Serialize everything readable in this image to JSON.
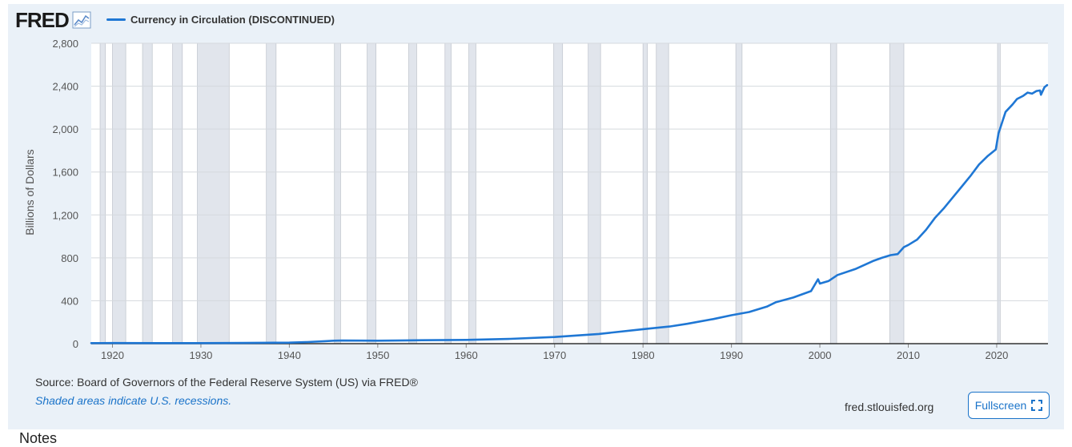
{
  "brand": {
    "logo_text": "FRED",
    "logo_icon": "line-chart-icon"
  },
  "footer": {
    "source": "Source: Board of Governors of the Federal Reserve System (US) via FRED®",
    "recession_note": "Shaded areas indicate U.S. recessions.",
    "site": "fred.stlouisfed.org",
    "fullscreen_label": "Fullscreen",
    "fullscreen_icon": "fullscreen-expand-icon"
  },
  "below_chart": {
    "notes_heading": "Notes"
  },
  "colors": {
    "series": "#1f77d4",
    "recession_fill": "#e1e5ec",
    "panel_bg": "#eaf1f8",
    "link": "#1a73c9"
  },
  "chart_data": {
    "type": "line",
    "title": "",
    "xlabel": "",
    "ylabel": "Billions of Dollars",
    "xlim": [
      1917.6,
      2025.8
    ],
    "ylim": [
      0,
      2800
    ],
    "y_ticks": [
      0,
      400,
      800,
      1200,
      1600,
      2000,
      2400,
      2800
    ],
    "y_tick_labels": [
      "0",
      "400",
      "800",
      "1,200",
      "1,600",
      "2,000",
      "2,400",
      "2,800"
    ],
    "x_ticks": [
      1920,
      1930,
      1940,
      1950,
      1960,
      1970,
      1980,
      1990,
      2000,
      2010,
      2020
    ],
    "x_tick_labels": [
      "1920",
      "1930",
      "1940",
      "1950",
      "1960",
      "1970",
      "1980",
      "1990",
      "2000",
      "2010",
      "2020"
    ],
    "grid": true,
    "legend_position": "top-left",
    "recessions": [
      [
        1918.6,
        1919.2
      ],
      [
        1920.0,
        1921.5
      ],
      [
        1923.4,
        1924.5
      ],
      [
        1926.8,
        1927.9
      ],
      [
        1929.6,
        1933.2
      ],
      [
        1937.4,
        1938.5
      ],
      [
        1945.1,
        1945.8
      ],
      [
        1948.8,
        1949.8
      ],
      [
        1953.5,
        1954.4
      ],
      [
        1957.6,
        1958.3
      ],
      [
        1960.3,
        1961.1
      ],
      [
        1969.9,
        1970.9
      ],
      [
        1973.8,
        1975.2
      ],
      [
        1980.0,
        1980.5
      ],
      [
        1981.5,
        1982.9
      ],
      [
        1990.5,
        1991.2
      ],
      [
        2001.2,
        2001.9
      ],
      [
        2007.9,
        2009.5
      ],
      [
        2020.1,
        2020.4
      ]
    ],
    "series": [
      {
        "name": "Currency in Circulation (DISCONTINUED)",
        "x": [
          1917.6,
          1920,
          1925,
          1930,
          1935,
          1940,
          1942,
          1944,
          1945,
          1946,
          1950,
          1955,
          1960,
          1965,
          1970,
          1975,
          1980,
          1983,
          1985,
          1988,
          1990,
          1992,
          1994,
          1995,
          1997,
          1999,
          1999.8,
          2000.0,
          2001,
          2002,
          2004,
          2006,
          2007,
          2008,
          2008.8,
          2009.5,
          2010,
          2011,
          2012,
          2013,
          2014,
          2015,
          2016,
          2017,
          2018,
          2019,
          2019.9,
          2020.2,
          2020.6,
          2021,
          2021.8,
          2022.3,
          2023,
          2023.5,
          2024,
          2024.5,
          2024.9,
          2025,
          2025.4,
          2025.7
        ],
        "y": [
          5,
          6,
          5,
          5,
          7,
          10,
          15,
          23,
          28,
          29,
          28,
          32,
          35,
          45,
          62,
          90,
          135,
          160,
          185,
          230,
          265,
          295,
          345,
          385,
          430,
          490,
          600,
          560,
          585,
          640,
          695,
          770,
          800,
          825,
          835,
          900,
          920,
          970,
          1060,
          1170,
          1260,
          1360,
          1460,
          1560,
          1670,
          1750,
          1810,
          1960,
          2060,
          2160,
          2230,
          2280,
          2310,
          2340,
          2330,
          2355,
          2360,
          2320,
          2390,
          2410
        ]
      }
    ]
  }
}
